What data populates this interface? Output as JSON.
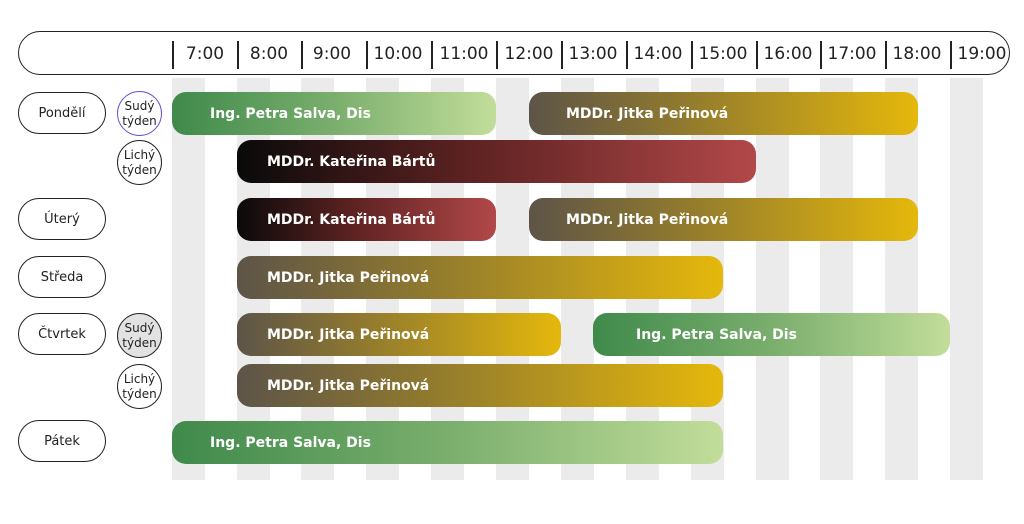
{
  "hours": [
    "7:00",
    "8:00",
    "9:00",
    "10:00",
    "11:00",
    "12:00",
    "13:00",
    "14:00",
    "15:00",
    "16:00",
    "17:00",
    "18:00",
    "19:00"
  ],
  "days": {
    "mon": "Pondělí",
    "tue": "Úterý",
    "wed": "Středa",
    "thu": "Čtvrtek",
    "fri": "Pátek"
  },
  "weeks": {
    "even_line1": "Sudý",
    "even_line2": "týden",
    "odd_line1": "Lichý",
    "odd_line2": "týden"
  },
  "doctors": {
    "salva": "Ing. Petra Salva, Dis",
    "perinova": "MDDr. Jitka Peřinová",
    "bartu": "MDDr. Kateřina Bártů"
  },
  "colors": {
    "salva_start": "#3f8a4b",
    "salva_end": "#c2dd9a",
    "perinova_start": "#5d5448",
    "perinova_end": "#e5b80b",
    "bartu_start": "#0a0a0a",
    "bartu_end": "#b24849",
    "even_week_purple_border": "#6b4fcf",
    "even_week_gray_fill": "#e2e2e2",
    "stripe": "#ebebeb"
  }
}
